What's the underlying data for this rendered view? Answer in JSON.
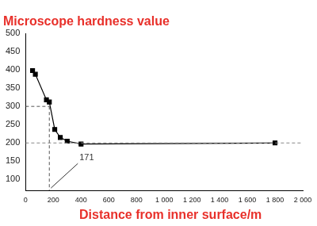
{
  "chart_data": {
    "type": "line",
    "y_label": "Microscope hardness value",
    "x_label": "Distance from inner surface/m",
    "x": [
      50,
      70,
      150,
      171,
      210,
      250,
      300,
      400,
      1800
    ],
    "values": [
      398,
      388,
      318,
      312,
      237,
      215,
      205,
      197,
      200
    ],
    "color": "#000000",
    "marker": "square",
    "line_style": "solid",
    "xlim": [
      0,
      2000
    ],
    "xticks": [
      0,
      200,
      400,
      600,
      800,
      {
        "value": 1000,
        "label": "1 000"
      },
      {
        "value": 1200,
        "label": "1 200"
      },
      {
        "value": 1400,
        "label": "1 400"
      },
      {
        "value": 1600,
        "label": "1 600"
      },
      {
        "value": 1800,
        "label": "1 800"
      },
      {
        "value": 2000,
        "label": "2 000"
      }
    ],
    "ylim": [
      70,
      500
    ],
    "yticks": [
      100,
      150,
      200,
      250,
      300,
      350,
      400,
      450,
      500
    ],
    "grid": false,
    "annotations": {
      "x": 171,
      "y": 300,
      "label": "171",
      "reference_y": 200
    }
  }
}
